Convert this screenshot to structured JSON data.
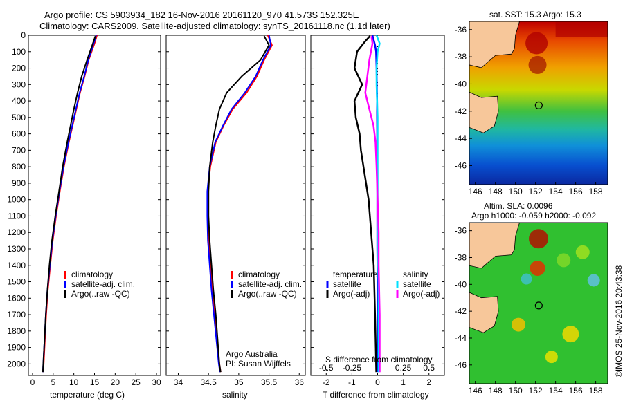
{
  "header": {
    "line1": "Argo profile: CS 5903934_182 16-Nov-2016 20161120_970 41.573S 152.325E",
    "line2": "Climatology: CARS2009. Satellite-adjusted climatology: synTS_20161118.nc (1.1d later)"
  },
  "colors": {
    "climatology": "#ff0000",
    "satellite": "#0000ff",
    "argo": "#000000",
    "sal_sat": "#00e0ff",
    "sal_argo": "#ff00ff"
  },
  "panels": {
    "temperature": {
      "xlabel": "temperature (deg C)",
      "xticks": [
        "0",
        "5",
        "10",
        "15",
        "20",
        "25",
        "30"
      ],
      "legend": [
        "climatology",
        "satellite-adj. clim.",
        "Argo(..raw -QC)"
      ]
    },
    "salinity": {
      "xlabel": "salinity",
      "xticks": [
        "34",
        "34.5",
        "35",
        "35.5",
        "36"
      ],
      "legend": [
        "climatology",
        "satellite-adj. clim.",
        "Argo(..raw -QC)"
      ],
      "credit1": "Argo Australia",
      "credit2": "PI: Susan Wijffels"
    },
    "difference": {
      "xlabel": "T difference from climatology",
      "toplabel": "S difference from climatology",
      "xticks": [
        "-2",
        "-1",
        "0",
        "1",
        "2"
      ],
      "sticks": [
        "-0.5",
        "-0.25",
        "0",
        "0.25",
        "0.5"
      ],
      "legend_t_title": "temperature",
      "legend_s_title": "salinity",
      "legend_t": [
        "satellite",
        "Argo(-adj)"
      ],
      "legend_s": [
        "satellite",
        "Argo(-adj)"
      ]
    },
    "yticks": [
      "0",
      "100",
      "200",
      "300",
      "400",
      "500",
      "600",
      "700",
      "800",
      "900",
      "1000",
      "1100",
      "1200",
      "1300",
      "1400",
      "1500",
      "1600",
      "1700",
      "1800",
      "1900",
      "2000"
    ]
  },
  "maps": {
    "sst_title": "sat. SST: 15.3  Argo: 15.3",
    "sla_title1": "Altim. SLA: 0.0096",
    "sla_title2": "Argo h1000: -0.059 h2000: -0.092",
    "lat_ticks": [
      "-36",
      "-38",
      "-40",
      "-42",
      "-44",
      "-46"
    ],
    "lon_ticks": [
      "146",
      "148",
      "150",
      "152",
      "154",
      "156",
      "158"
    ],
    "float_position": {
      "lon": 152.325,
      "lat": -41.573
    },
    "footer": "©IMOS 25-Nov-2016 20:43:38"
  },
  "chart_data": [
    {
      "type": "line",
      "title": "",
      "xlabel": "temperature (deg C)",
      "ylabel": "",
      "xlim": [
        -1,
        31
      ],
      "ylim": [
        2070,
        0
      ],
      "series": [
        {
          "name": "climatology",
          "x": [
            15.6,
            15.0,
            13.6,
            12.6,
            11.5,
            10.6,
            9.7,
            8.8,
            7.6,
            6.6,
            5.7,
            4.9,
            4.3,
            3.7,
            3.3,
            3.0,
            2.7,
            2.6
          ],
          "y": [
            0,
            50,
            150,
            250,
            350,
            450,
            550,
            650,
            800,
            950,
            1100,
            1250,
            1400,
            1550,
            1700,
            1850,
            2000,
            2050
          ]
        },
        {
          "name": "satellite-adj. clim.",
          "x": [
            15.4,
            14.8,
            13.5,
            12.5,
            11.4,
            10.5,
            9.6,
            8.7,
            7.5,
            6.5,
            5.6,
            4.8,
            4.2,
            3.6,
            3.2,
            2.9,
            2.6,
            2.5
          ],
          "y": [
            0,
            50,
            150,
            250,
            350,
            450,
            550,
            650,
            800,
            950,
            1100,
            1250,
            1400,
            1550,
            1700,
            1850,
            2000,
            2050
          ]
        },
        {
          "name": "Argo(..raw -QC)",
          "x": [
            15.2,
            14.6,
            13.2,
            11.9,
            10.9,
            10.0,
            9.2,
            8.4,
            7.3,
            6.4,
            5.5,
            4.7,
            4.1,
            3.6,
            3.2,
            2.9,
            2.6,
            2.5
          ],
          "y": [
            5,
            50,
            150,
            250,
            350,
            450,
            550,
            650,
            800,
            950,
            1100,
            1250,
            1400,
            1550,
            1700,
            1850,
            2000,
            2050
          ]
        }
      ]
    },
    {
      "type": "line",
      "title": "",
      "xlabel": "salinity",
      "ylabel": "",
      "xlim": [
        33.8,
        36.1
      ],
      "ylim": [
        2070,
        0
      ],
      "series": [
        {
          "name": "climatology",
          "x": [
            35.48,
            35.55,
            35.42,
            35.3,
            35.13,
            34.9,
            34.75,
            34.62,
            34.53,
            34.49,
            34.49,
            34.5,
            34.53,
            34.56,
            34.6,
            34.64,
            34.68,
            34.7
          ],
          "y": [
            0,
            60,
            150,
            250,
            350,
            450,
            550,
            650,
            800,
            950,
            1100,
            1250,
            1400,
            1550,
            1700,
            1850,
            2000,
            2050
          ]
        },
        {
          "name": "satellite-adj. clim.",
          "x": [
            35.5,
            35.53,
            35.4,
            35.28,
            35.1,
            34.88,
            34.74,
            34.61,
            34.52,
            34.48,
            34.48,
            34.49,
            34.52,
            34.55,
            34.59,
            34.63,
            34.67,
            34.69
          ],
          "y": [
            0,
            60,
            150,
            250,
            350,
            450,
            550,
            650,
            800,
            950,
            1100,
            1250,
            1400,
            1550,
            1700,
            1850,
            2000,
            2050
          ]
        },
        {
          "name": "Argo(..raw -QC)",
          "x": [
            35.42,
            35.5,
            35.36,
            35.05,
            34.8,
            34.68,
            34.62,
            34.57,
            34.52,
            34.5,
            34.5,
            34.52,
            34.55,
            34.58,
            34.62,
            34.65,
            34.68,
            34.7
          ],
          "y": [
            5,
            60,
            150,
            250,
            350,
            450,
            550,
            650,
            800,
            950,
            1100,
            1250,
            1400,
            1550,
            1700,
            1850,
            2000,
            2050
          ]
        }
      ]
    },
    {
      "type": "line",
      "title": "",
      "xlabel": "T difference from climatology",
      "ylabel": "",
      "xlim": [
        -2.6,
        2.6
      ],
      "ylim": [
        2070,
        0
      ],
      "series": [
        {
          "name": "satellite",
          "x": [
            -0.2,
            -0.15,
            -0.1,
            -0.06,
            -0.04,
            -0.03,
            -0.02,
            -0.02,
            -0.01,
            -0.01,
            -0.01,
            -0.01,
            0,
            0,
            0,
            0
          ],
          "y": [
            0,
            30,
            60,
            100,
            200,
            300,
            400,
            500,
            700,
            900,
            1100,
            1300,
            1500,
            1700,
            1900,
            2050
          ]
        },
        {
          "name": "Argo(-adj)",
          "x": [
            -0.3,
            -0.5,
            -0.8,
            -0.9,
            -0.6,
            -0.9,
            -0.85,
            -0.7,
            -0.65,
            -0.55,
            -0.45,
            -0.35,
            -0.25,
            -0.15,
            -0.1,
            -0.05
          ],
          "y": [
            5,
            40,
            100,
            200,
            300,
            400,
            500,
            600,
            700,
            800,
            900,
            1000,
            1200,
            1400,
            1700,
            2050
          ]
        }
      ]
    },
    {
      "type": "line",
      "title": "",
      "xlabel": "S difference from climatology",
      "ylabel": "",
      "xlim": [
        -0.65,
        0.65
      ],
      "ylim": [
        2070,
        0
      ],
      "series": [
        {
          "name": "satellite",
          "x": [
            -0.01,
            0.02,
            0.0,
            -0.01,
            -0.01,
            0,
            0,
            0,
            0,
            0,
            0.01,
            0.01,
            0.01,
            0.01
          ],
          "y": [
            0,
            50,
            100,
            200,
            300,
            500,
            700,
            900,
            1100,
            1300,
            1500,
            1700,
            1900,
            2050
          ]
        },
        {
          "name": "Argo(-adj)",
          "x": [
            -0.06,
            -0.05,
            -0.08,
            -0.1,
            -0.12,
            -0.08,
            -0.04,
            -0.02,
            -0.01,
            0,
            0.01,
            0.01,
            0.02,
            0.02
          ],
          "y": [
            5,
            50,
            150,
            250,
            350,
            450,
            550,
            650,
            800,
            1000,
            1200,
            1400,
            1700,
            2050
          ]
        }
      ]
    }
  ]
}
